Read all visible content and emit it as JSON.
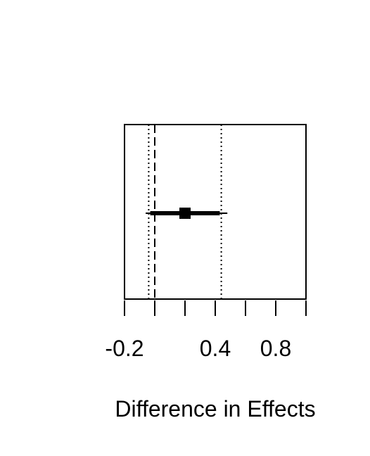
{
  "chart_data": {
    "type": "forest",
    "xlabel": "Difference in Effects",
    "xlim": [
      -0.2,
      1.0
    ],
    "ticks": [
      -0.2,
      0.0,
      0.2,
      0.4,
      0.6,
      0.8,
      1.0
    ],
    "tick_labels": [
      {
        "value": -0.2,
        "label": "-0.2"
      },
      {
        "value": 0.4,
        "label": "0.4"
      },
      {
        "value": 0.8,
        "label": "0.8"
      }
    ],
    "points": [
      {
        "estimate": 0.2,
        "ci_inner": [
          -0.03,
          0.43
        ],
        "ci_outer": [
          -0.06,
          0.48
        ]
      }
    ],
    "reference_lines": [
      {
        "value": 0.0,
        "style": "dashed"
      },
      {
        "value": -0.04,
        "style": "dotted"
      },
      {
        "value": 0.44,
        "style": "dotted"
      }
    ],
    "colors": {
      "ink": "#000000",
      "background": "#ffffff"
    }
  }
}
